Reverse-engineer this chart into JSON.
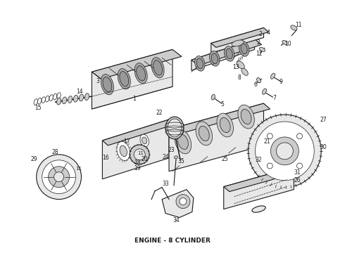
{
  "title": "ENGINE - 8 CYLINDER",
  "background_color": "#ffffff",
  "line_color": "#1a1a1a",
  "title_fontsize": 6.5,
  "fig_width": 4.9,
  "fig_height": 3.6,
  "dpi": 100,
  "lw_main": 0.8,
  "lw_thin": 0.5,
  "lw_thick": 1.2,
  "fc_light": "#e8e8e8",
  "fc_mid": "#cccccc",
  "fc_dark": "#999999",
  "fc_white": "#ffffff"
}
